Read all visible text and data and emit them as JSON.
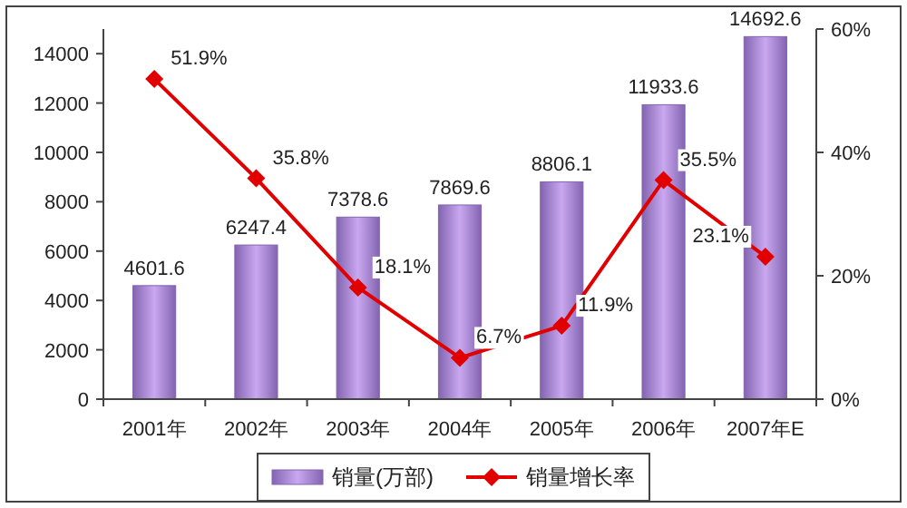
{
  "chart_data": {
    "type": "bar",
    "categories": [
      "2001年",
      "2002年",
      "2003年",
      "2004年",
      "2005年",
      "2006年",
      "2007年E"
    ],
    "series": [
      {
        "name": "销量(万部)",
        "color": "#8364b0",
        "values": [
          4601.6,
          6247.4,
          7378.6,
          7869.6,
          8806.1,
          11933.6,
          14692.6
        ],
        "value_labels": [
          "4601.6",
          "6247.4",
          "7378.6",
          "7869.6",
          "8806.1",
          "11933.6",
          "14692.6"
        ]
      },
      {
        "name": "销量增长率",
        "type": "line",
        "axis": "y2",
        "color": "#e00000",
        "values": [
          51.9,
          35.8,
          18.1,
          6.7,
          11.9,
          35.5,
          23.1
        ],
        "value_labels": [
          "51.9%",
          "35.8%",
          "18.1%",
          "6.7%",
          "11.9%",
          "35.5%",
          "23.1%"
        ]
      }
    ],
    "ylim": [
      0,
      15000
    ],
    "yticks": [
      0,
      2000,
      4000,
      6000,
      8000,
      10000,
      12000,
      14000
    ],
    "y2lim": [
      0,
      60
    ],
    "y2ticks": [
      {
        "value": 0,
        "label": "0%"
      },
      {
        "value": 20,
        "label": "20%"
      },
      {
        "value": 40,
        "label": "40%"
      },
      {
        "value": 60,
        "label": "60%"
      }
    ],
    "legend": "bottom",
    "marker": "diamond",
    "line_style": "solid",
    "grid": false
  }
}
